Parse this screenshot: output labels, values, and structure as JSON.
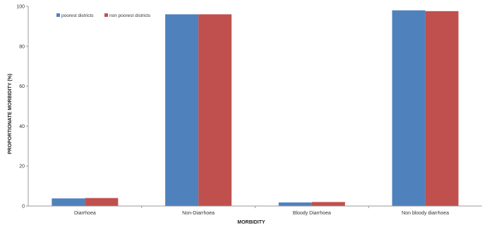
{
  "chart_data": {
    "type": "bar",
    "title": "",
    "xlabel": "MORBIDITY",
    "ylabel": "PROPORTIONATE MORBIDITY (%)",
    "ylim": [
      0,
      100
    ],
    "yticks": [
      0,
      20,
      40,
      60,
      80,
      100
    ],
    "grid": false,
    "legend_position": "top-left",
    "categories": [
      "Diarrhoea",
      "Non-Diarrhoea",
      "Bloody Diarrhoea",
      "Non bloody diarrhoea"
    ],
    "series": [
      {
        "name": "poorest districts",
        "color": "#4F81BD",
        "values": [
          3.8,
          96,
          1.8,
          98
        ]
      },
      {
        "name": "non poorest districts",
        "color": "#C0504D",
        "values": [
          4.0,
          96,
          2.0,
          97.6
        ]
      }
    ]
  }
}
